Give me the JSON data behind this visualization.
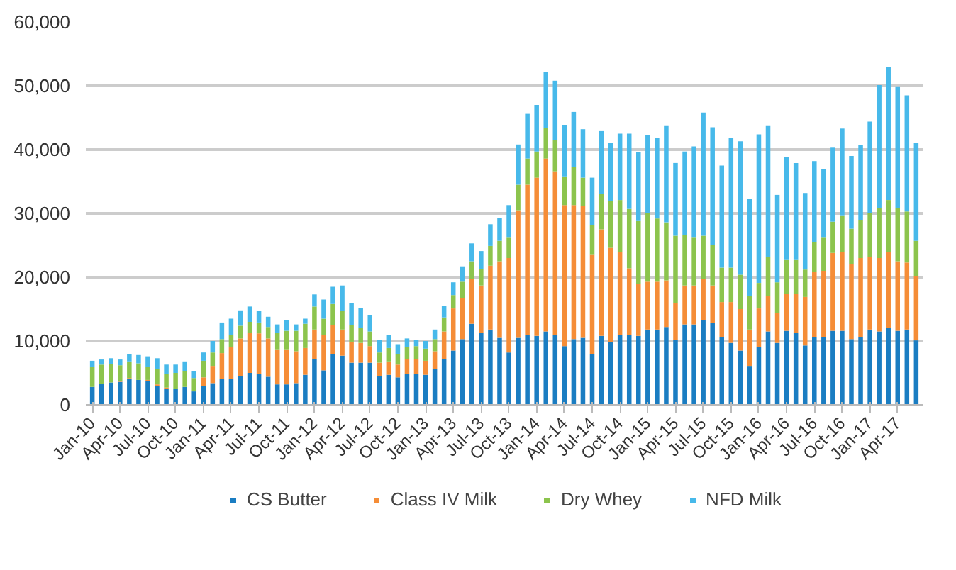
{
  "chart_data": {
    "type": "bar",
    "stacked": true,
    "categories": [
      "Jan-10",
      null,
      null,
      "Apr-10",
      null,
      null,
      "Jul-10",
      null,
      null,
      "Oct-10",
      null,
      null,
      "Jan-11",
      null,
      null,
      "Apr-11",
      null,
      null,
      "Jul-11",
      null,
      null,
      "Oct-11",
      null,
      null,
      "Jan-12",
      null,
      null,
      "Apr-12",
      null,
      null,
      "Jul-12",
      null,
      null,
      "Oct-12",
      null,
      null,
      "Jan-13",
      null,
      null,
      "Apr-13",
      null,
      null,
      "Jul-13",
      null,
      null,
      "Oct-13",
      null,
      null,
      "Jan-14",
      null,
      null,
      "Apr-14",
      null,
      null,
      "Jul-14",
      null,
      null,
      "Oct-14",
      null,
      null,
      "Jan-15",
      null,
      null,
      "Apr-15",
      null,
      null,
      "Jul-15",
      null,
      null,
      "Oct-15",
      null,
      null,
      "Jan-16",
      null,
      null,
      "Apr-16",
      null,
      null,
      "Jul-16",
      null,
      null,
      "Oct-16",
      null,
      null,
      "Jan-17",
      null,
      null,
      "Apr-17",
      null,
      null
    ],
    "series": [
      {
        "name": "CS Butter",
        "color": "#1a7dc2",
        "values": [
          2800,
          3300,
          3500,
          3600,
          4000,
          3900,
          3700,
          3000,
          2500,
          2500,
          2800,
          2100,
          3000,
          3400,
          4100,
          4100,
          4500,
          5000,
          4800,
          4400,
          3200,
          3200,
          3400,
          4700,
          7200,
          5400,
          8000,
          7700,
          6600,
          6600,
          6600,
          4500,
          4700,
          4300,
          4800,
          4800,
          4700,
          5600,
          7200,
          8500,
          10300,
          12700,
          11300,
          11800,
          10500,
          8200,
          10500,
          11000,
          10800,
          11500,
          11000,
          9200,
          10300,
          10500,
          8000,
          10800,
          9900,
          11000,
          11000,
          10800,
          11800,
          11800,
          12200,
          10200,
          12600,
          12600,
          13300,
          12800,
          10600,
          9700,
          8500,
          6100,
          9100,
          11500,
          9700,
          11600,
          11300,
          9300,
          10600,
          10600,
          11600,
          11600,
          10300,
          10600,
          11800,
          11500,
          12000,
          11600,
          11800,
          10100
        ]
      },
      {
        "name": "Class IV Milk",
        "color": "#f58d37",
        "values": [
          0,
          0,
          0,
          100,
          200,
          null,
          200,
          200,
          200,
          0,
          0,
          0,
          1300,
          2700,
          4000,
          4900,
          5900,
          6300,
          6400,
          6000,
          5500,
          5500,
          5000,
          4200,
          4600,
          5600,
          4500,
          4100,
          3300,
          3100,
          2600,
          2100,
          2100,
          2000,
          2400,
          2400,
          2200,
          2800,
          4300,
          6600,
          6400,
          7000,
          7400,
          10000,
          12000,
          14800,
          20000,
          23500,
          24800,
          27100,
          25600,
          22100,
          21000,
          20700,
          15600,
          16700,
          14700,
          12900,
          10400,
          8200,
          7500,
          7500,
          7300,
          5700,
          6100,
          6100,
          6400,
          5900,
          5500,
          6400,
          6500,
          5700,
          6000,
          5600,
          4700,
          5800,
          6100,
          7600,
          10200,
          10400,
          12200,
          12400,
          11700,
          12400,
          11400,
          11500,
          12000,
          10900,
          10500,
          10100
        ]
      },
      {
        "name": "Dry Whey",
        "color": "#8cc44d",
        "values": [
          3200,
          3000,
          2900,
          2500,
          2600,
          2600,
          2100,
          2400,
          2100,
          2500,
          2500,
          2100,
          2600,
          2100,
          2200,
          1900,
          2000,
          1700,
          1700,
          1800,
          2600,
          2900,
          3200,
          3800,
          3600,
          2500,
          3300,
          2900,
          2600,
          2400,
          2300,
          1600,
          2100,
          1600,
          1800,
          2000,
          1900,
          1900,
          2200,
          2100,
          2600,
          2800,
          2600,
          3100,
          3200,
          3300,
          4000,
          4100,
          4100,
          4800,
          4900,
          4500,
          6000,
          4400,
          4600,
          5600,
          7400,
          8200,
          9300,
          9800,
          10700,
          9900,
          9100,
          10600,
          7900,
          7600,
          6800,
          6400,
          5400,
          5400,
          5400,
          5300,
          4000,
          6100,
          4800,
          5300,
          5300,
          4300,
          4700,
          5300,
          4900,
          5700,
          5600,
          6000,
          6800,
          7900,
          8100,
          8300,
          8000,
          5500
        ]
      },
      {
        "name": "NFD Milk",
        "color": "#47b9ea",
        "values": [
          900,
          800,
          900,
          900,
          1100,
          1300,
          1600,
          1700,
          1500,
          1300,
          1500,
          1100,
          1300,
          1800,
          2600,
          2600,
          2400,
          2400,
          1800,
          1600,
          1300,
          1700,
          1000,
          800,
          1900,
          3000,
          2700,
          4000,
          3400,
          3100,
          2500,
          2000,
          2000,
          1600,
          1400,
          1000,
          1200,
          1500,
          1800,
          2000,
          2400,
          2800,
          2800,
          3400,
          3600,
          5000,
          6300,
          7000,
          7300,
          8800,
          9300,
          8000,
          8600,
          7600,
          7400,
          9800,
          9000,
          10400,
          11800,
          10800,
          12300,
          12600,
          15100,
          11400,
          13100,
          14200,
          19300,
          18400,
          16000,
          20300,
          20900,
          15200,
          23300,
          20500,
          13700,
          16100,
          15200,
          12000,
          12700,
          10600,
          11600,
          13600,
          11400,
          11700,
          14400,
          19200,
          20800,
          19000,
          18200,
          15400
        ]
      }
    ],
    "ylim": [
      0,
      60000
    ],
    "yticks": [
      0,
      {
        "value": 10000,
        "label": "10,000"
      },
      {
        "value": 20000,
        "label": "20,000"
      },
      {
        "value": 30000,
        "label": "30,000"
      },
      {
        "value": 40000,
        "label": "40,000"
      },
      {
        "value": 50000,
        "label": "50,000"
      },
      {
        "value": 60000,
        "label": "60,000"
      }
    ],
    "grid": "y",
    "legend": "bottom"
  }
}
